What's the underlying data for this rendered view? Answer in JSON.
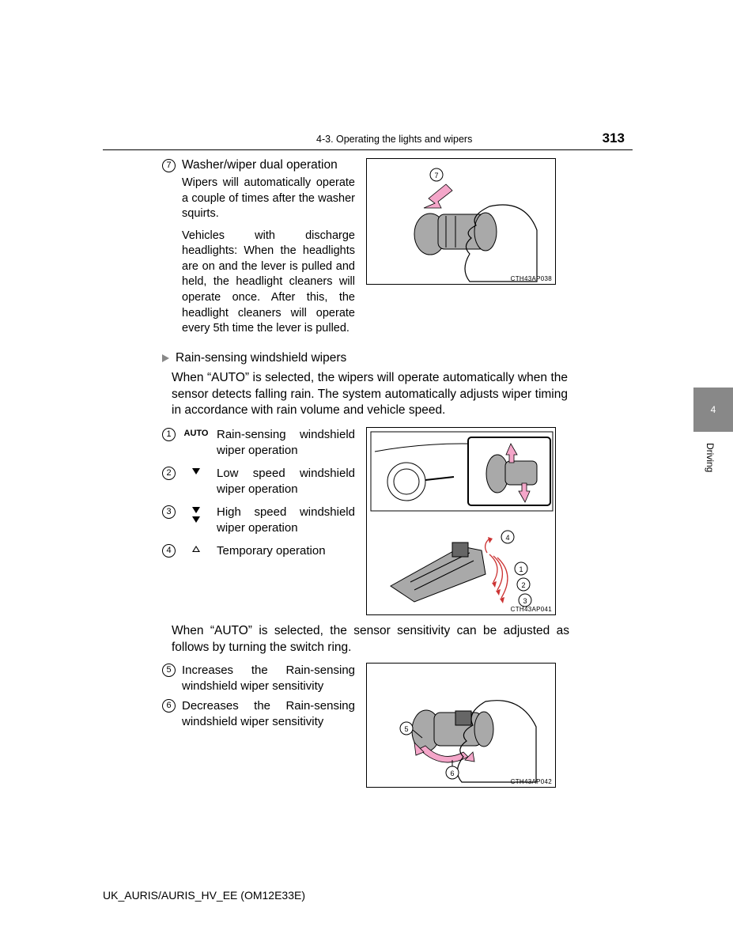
{
  "header": {
    "section": "4-3. Operating the lights and wipers",
    "page_number": "313"
  },
  "side_tab": {
    "number": "4",
    "label": "Driving"
  },
  "step7": {
    "num": "7",
    "title": "Washer/wiper dual operation",
    "para1": "Wipers will automatically operate a couple of times after the washer squirts.",
    "para2": "Vehicles with discharge headlights: When the headlights are on and the lever is pulled and held, the headlight cleaners will operate once. After this, the headlight cleaners will operate every 5th time the lever is pulled."
  },
  "fig7": {
    "caption": "CTH43AP038",
    "callout": "7"
  },
  "subsection": {
    "title": "Rain-sensing windshield wipers"
  },
  "auto_intro": "When “AUTO” is selected, the wipers will operate automatically when the sensor detects falling rain. The system automatically adjusts wiper timing in accordance with rain volume and vehicle speed.",
  "modes": [
    {
      "num": "1",
      "symbol": "AUTO",
      "text": "Rain-sensing windshield wiper operation"
    },
    {
      "num": "2",
      "symbol": "down",
      "text": "Low speed windshield wiper operation"
    },
    {
      "num": "3",
      "symbol": "doubledown",
      "text": "High speed windshield wiper operation"
    },
    {
      "num": "4",
      "symbol": "upoutline",
      "text": "Temporary operation"
    }
  ],
  "fig_modes": {
    "caption": "CTH43AP041",
    "callouts": [
      "4",
      "1",
      "2",
      "3"
    ]
  },
  "sens_intro": "When “AUTO” is selected, the sensor sensitivity can be adjusted as follows by turning the switch ring.",
  "sens_items": [
    {
      "num": "5",
      "text": "Increases the Rain-sensing windshield wiper sensitivity"
    },
    {
      "num": "6",
      "text": "Decreases the Rain-sensing windshield wiper sensitivity"
    }
  ],
  "fig_sens": {
    "caption": "CTH43AP042",
    "callouts": [
      "5",
      "6"
    ]
  },
  "footer": "UK_AURIS/AURIS_HV_EE (OM12E33E)",
  "colors": {
    "pink": "#f4a6c9",
    "gray": "#a9a9a9",
    "tab_gray": "#888888"
  }
}
